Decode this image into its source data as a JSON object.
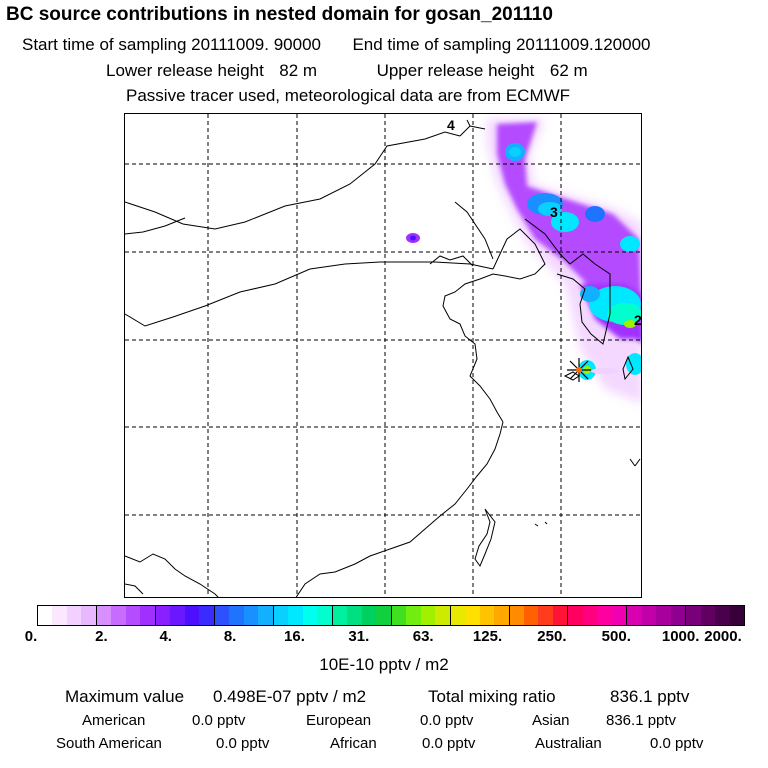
{
  "header": {
    "title": "BC  source contributions in nested domain for gosan_201110",
    "start_label": "Start time of sampling",
    "start_value": "20111009. 90000",
    "end_label": "End time of sampling",
    "end_value": "20111009.120000",
    "lower_label": "Lower release height",
    "lower_value": "82 m",
    "upper_label": "Upper release height",
    "upper_value": "62 m",
    "note": "Passive tracer used, meteorological data are from ECMWF"
  },
  "map": {
    "contour_labels": [
      "4",
      "3",
      "2"
    ],
    "colors": {
      "land_outline": "#000000",
      "grid": "#000000",
      "station_marker": "#ff6600"
    }
  },
  "colorbar": {
    "tick_labels": [
      "0.",
      "2.",
      "4.",
      "8.",
      "16.",
      "31.",
      "63.",
      "125.",
      "250.",
      "500.",
      "1000.",
      "2000."
    ],
    "colors": [
      "#ffffff",
      "#fbe8ff",
      "#f2d0ff",
      "#e8b8ff",
      "#d890ff",
      "#c86cff",
      "#b44cff",
      "#a030ff",
      "#8820ff",
      "#6a18ff",
      "#4c10ff",
      "#3a2cff",
      "#2c52ff",
      "#1f74ff",
      "#1890ff",
      "#12b0ff",
      "#0ad0ff",
      "#00e8ff",
      "#00ffee",
      "#00ffcc",
      "#00f0a0",
      "#00e080",
      "#00d060",
      "#10d040",
      "#40e020",
      "#70ee10",
      "#a0f000",
      "#cceb00",
      "#e8e800",
      "#ffe000",
      "#ffc400",
      "#ffa800",
      "#ff8c00",
      "#ff6000",
      "#ff3c1c",
      "#ff1438",
      "#ff0060",
      "#ff0080",
      "#ff00a0",
      "#f000b0",
      "#d800b0",
      "#c000a8",
      "#a8009c",
      "#900090",
      "#780078",
      "#600060",
      "#4a004a",
      "#380038"
    ],
    "units": "10E-10 pptv / m2"
  },
  "stats": {
    "max_label": "Maximum value",
    "max_value": "0.498E-07 pptv / m2",
    "total_label": "Total mixing ratio",
    "total_value": "836.1 pptv",
    "american_label": "American",
    "american_value": "0.0 pptv",
    "european_label": "European",
    "european_value": "0.0 pptv",
    "asian_label": "Asian",
    "asian_value": "836.1 pptv",
    "south_american_label": "South American",
    "south_american_value": "0.0 pptv",
    "african_label": "African",
    "african_value": "0.0 pptv",
    "australian_label": "Australian",
    "australian_value": "0.0 pptv"
  }
}
